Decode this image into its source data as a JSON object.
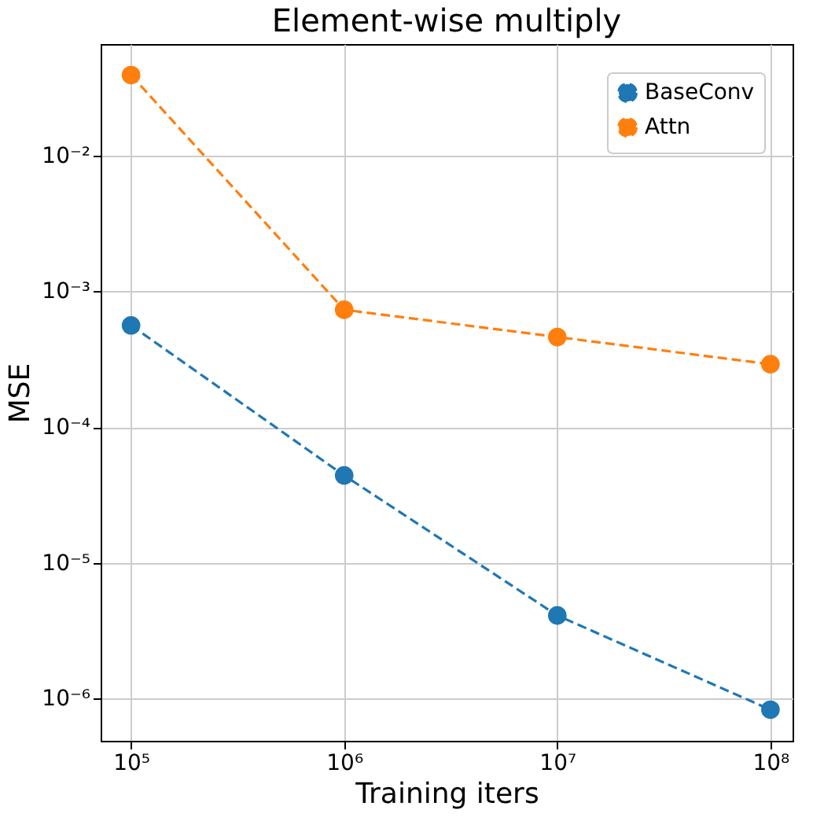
{
  "chart_data": {
    "type": "line",
    "title": "Element-wise multiply",
    "xlabel": "Training iters",
    "ylabel": "MSE",
    "x": [
      100000,
      1000000,
      10000000,
      100000000
    ],
    "series": [
      {
        "name": "BaseConv",
        "color": "#1f77b4",
        "values": [
          0.00056,
          4.4e-05,
          4.1e-06,
          8.3e-07
        ]
      },
      {
        "name": "Attn",
        "color": "#ff7f0e",
        "values": [
          0.039,
          0.00073,
          0.00046,
          0.00029
        ]
      }
    ],
    "log": "xy",
    "xlim": [
      72000,
      127000000
    ],
    "ylim": [
      4.9e-07,
      0.066
    ],
    "xticks": [
      {
        "value": 100000,
        "label": "10⁵"
      },
      {
        "value": 1000000,
        "label": "10⁶"
      },
      {
        "value": 10000000,
        "label": "10⁷"
      },
      {
        "value": 100000000,
        "label": "10⁸"
      }
    ],
    "yticks": [
      {
        "value": 1e-06,
        "label": "10⁻⁶"
      },
      {
        "value": 1e-05,
        "label": "10⁻⁵"
      },
      {
        "value": 0.0001,
        "label": "10⁻⁴"
      },
      {
        "value": 0.001,
        "label": "10⁻³"
      },
      {
        "value": 0.01,
        "label": "10⁻²"
      }
    ],
    "grid": true,
    "legend": "top right",
    "marker": "circle",
    "line_style": "dashed"
  }
}
